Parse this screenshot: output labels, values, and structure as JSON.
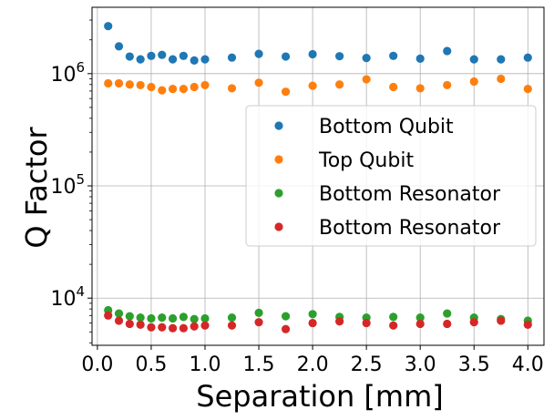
{
  "chart_data": {
    "type": "scatter",
    "title": "",
    "xlabel": "Separation [mm]",
    "ylabel": "Q Factor",
    "xscale": "linear",
    "yscale": "log",
    "xlim": [
      -0.05,
      4.15
    ],
    "ylim": [
      3800,
      3900000
    ],
    "grid": true,
    "legend_position": "center-right",
    "xticks": [
      {
        "value": 0.0,
        "label": "0.0"
      },
      {
        "value": 0.5,
        "label": "0.5"
      },
      {
        "value": 1.0,
        "label": "1.0"
      },
      {
        "value": 1.5,
        "label": "1.5"
      },
      {
        "value": 2.0,
        "label": "2.0"
      },
      {
        "value": 2.5,
        "label": "2.5"
      },
      {
        "value": 3.0,
        "label": "3.0"
      },
      {
        "value": 3.5,
        "label": "3.5"
      },
      {
        "value": 4.0,
        "label": "4.0"
      }
    ],
    "yticks": [
      {
        "value": 10000,
        "base": "10",
        "exp": "4"
      },
      {
        "value": 100000,
        "base": "10",
        "exp": "5"
      },
      {
        "value": 1000000,
        "base": "10",
        "exp": "6"
      }
    ],
    "x": [
      0.1,
      0.2,
      0.3,
      0.4,
      0.5,
      0.6,
      0.7,
      0.8,
      0.9,
      1.0,
      1.25,
      1.5,
      1.75,
      2.0,
      2.25,
      2.5,
      2.75,
      3.0,
      3.25,
      3.5,
      3.75,
      4.0
    ],
    "series": [
      {
        "name": "Bottom Qubit",
        "color": "#1f77b4",
        "values": [
          2650000,
          1750000,
          1420000,
          1340000,
          1440000,
          1470000,
          1340000,
          1440000,
          1310000,
          1340000,
          1390000,
          1500000,
          1420000,
          1490000,
          1430000,
          1380000,
          1440000,
          1360000,
          1590000,
          1340000,
          1340000,
          1390000
        ]
      },
      {
        "name": "Top Qubit",
        "color": "#ff7f0e",
        "values": [
          820000,
          820000,
          800000,
          790000,
          760000,
          710000,
          730000,
          730000,
          760000,
          790000,
          740000,
          830000,
          690000,
          780000,
          800000,
          890000,
          760000,
          740000,
          790000,
          850000,
          900000,
          730000
        ]
      },
      {
        "name": "Bottom Resonator",
        "color": "#2ca02c",
        "values": [
          7800,
          7300,
          6900,
          6700,
          6600,
          6700,
          6600,
          6800,
          6500,
          6600,
          6700,
          7400,
          6900,
          7200,
          6800,
          6700,
          6800,
          6700,
          7300,
          6700,
          6500,
          6300
        ]
      },
      {
        "name": "Bottom Resonator",
        "color": "#d62728",
        "values": [
          7000,
          6300,
          5900,
          5800,
          5500,
          5500,
          5400,
          5400,
          5600,
          5700,
          5700,
          6100,
          5300,
          6000,
          6200,
          6000,
          5700,
          5900,
          5900,
          6100,
          6300,
          5800
        ]
      }
    ]
  }
}
